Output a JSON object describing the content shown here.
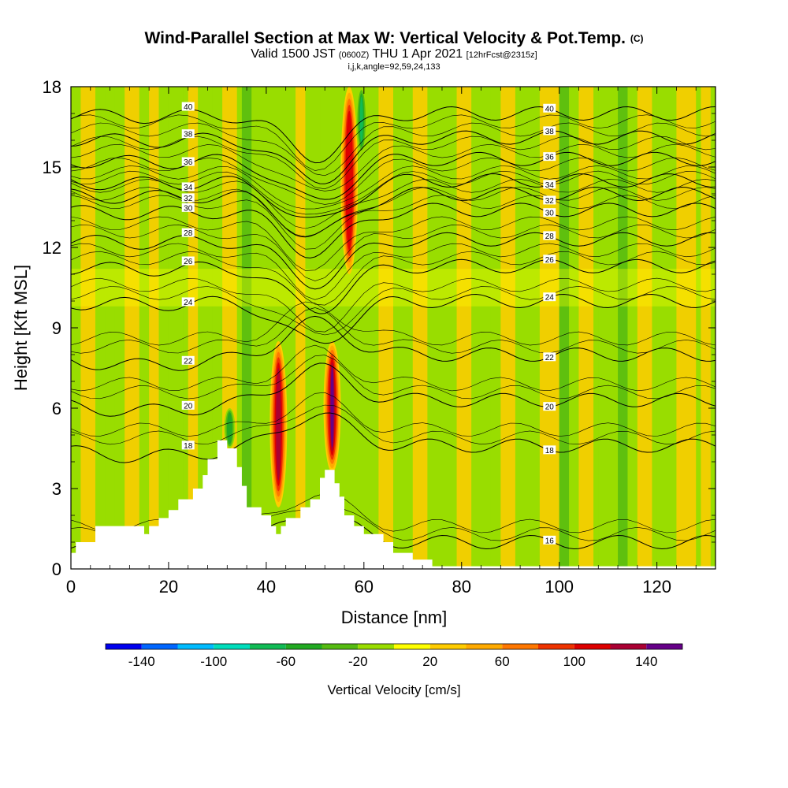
{
  "title": {
    "main": "Wind-Parallel Section at Max W: Vertical Velocity & Pot.Temp.",
    "corner": "(C)",
    "valid_prefix": "Valid 1500 JST",
    "valid_z": "(0600Z)",
    "valid_date": "THU 1 Apr 2021",
    "forecast": "[12hrFcst@2315z]",
    "indices": "i,j,k,angle=92,59,24,133"
  },
  "chart_data": {
    "type": "heatmap",
    "xlabel": "Distance [nm]",
    "ylabel": "Height [Kft MSL]",
    "xlim": [
      0,
      132
    ],
    "ylim": [
      0,
      18
    ],
    "x_ticks": [
      0,
      20,
      40,
      60,
      80,
      100,
      120
    ],
    "y_ticks": [
      0,
      3,
      6,
      9,
      12,
      15,
      18
    ],
    "colorbar": {
      "label": "Vertical Velocity [cm/s]",
      "levels": [
        -160,
        -140,
        -120,
        -100,
        -80,
        -60,
        -40,
        -20,
        0,
        20,
        40,
        60,
        80,
        100,
        120,
        140,
        160
      ],
      "tick_labels": [
        "-140",
        "-100",
        "-60",
        "-20",
        "20",
        "60",
        "100",
        "140"
      ],
      "colors": [
        "#0000ee",
        "#0066ff",
        "#00bbff",
        "#00ddbb",
        "#11bb55",
        "#22aa22",
        "#55bb11",
        "#99dd00",
        "#ffff00",
        "#ffcc00",
        "#ffaa00",
        "#ff7700",
        "#ee3300",
        "#dd0000",
        "#aa0033",
        "#660088"
      ]
    },
    "background_color": "#99dd00",
    "updraft_columns": [
      {
        "x": 42.5,
        "y_bottom": 2.3,
        "y_top": 8.5,
        "peak_w": 120
      },
      {
        "x": 53.5,
        "y_bottom": 3.6,
        "y_top": 8.5,
        "peak_w": 140
      },
      {
        "x": 57.0,
        "y_bottom": 11.0,
        "y_top": 18,
        "peak_w": 100
      }
    ],
    "downdraft_columns": [
      {
        "x": 59.5,
        "y_bottom": 15.5,
        "y_top": 18,
        "min_w": -80
      },
      {
        "x": 32.5,
        "y_bottom": 4.5,
        "y_top": 6.0,
        "min_w": -60
      }
    ],
    "theta_contour_labels": [
      "16",
      "18",
      "20",
      "22",
      "24",
      "26",
      "28",
      "30",
      "32",
      "34",
      "36",
      "38",
      "40"
    ],
    "theta_levels": [
      {
        "label": "16",
        "h_far": 1.0
      },
      {
        "label": "18",
        "h_far": 4.6
      },
      {
        "label": "20",
        "h_far": 6.3
      },
      {
        "label": "22",
        "h_far": 8.0
      },
      {
        "label": "24",
        "h_far": 10.0
      },
      {
        "label": "26",
        "h_far": 11.3
      },
      {
        "label": "28",
        "h_far": 12.3
      },
      {
        "label": "30",
        "h_far": 13.4
      },
      {
        "label": "32",
        "h_far": 14.0
      },
      {
        "label": "34",
        "h_far": 14.5
      },
      {
        "label": "36",
        "h_far": 15.3
      },
      {
        "label": "38",
        "h_far": 16.1
      },
      {
        "label": "40",
        "h_far": 17.0
      }
    ],
    "terrain": [
      [
        0,
        0.6
      ],
      [
        1,
        0.6
      ],
      [
        1,
        1.0
      ],
      [
        5,
        1.0
      ],
      [
        5,
        1.6
      ],
      [
        15,
        1.6
      ],
      [
        15,
        1.3
      ],
      [
        16,
        1.3
      ],
      [
        16,
        1.6
      ],
      [
        18,
        1.6
      ],
      [
        18,
        1.9
      ],
      [
        20,
        1.9
      ],
      [
        20,
        2.2
      ],
      [
        22,
        2.2
      ],
      [
        22,
        2.6
      ],
      [
        25,
        2.6
      ],
      [
        25,
        3.0
      ],
      [
        27,
        3.0
      ],
      [
        27,
        3.5
      ],
      [
        28,
        3.5
      ],
      [
        28,
        4.1
      ],
      [
        30,
        4.1
      ],
      [
        30,
        4.8
      ],
      [
        32,
        4.8
      ],
      [
        32,
        4.5
      ],
      [
        34,
        4.5
      ],
      [
        34,
        3.8
      ],
      [
        35,
        3.8
      ],
      [
        35,
        3.1
      ],
      [
        36,
        3.1
      ],
      [
        36,
        2.3
      ],
      [
        39,
        2.3
      ],
      [
        39,
        2.0
      ],
      [
        41,
        2.0
      ],
      [
        41,
        1.6
      ],
      [
        42,
        1.6
      ],
      [
        42,
        1.3
      ],
      [
        43,
        1.3
      ],
      [
        43,
        1.6
      ],
      [
        44,
        1.6
      ],
      [
        44,
        1.9
      ],
      [
        47,
        1.9
      ],
      [
        47,
        2.3
      ],
      [
        49,
        2.3
      ],
      [
        49,
        2.6
      ],
      [
        51,
        2.6
      ],
      [
        51,
        3.4
      ],
      [
        52,
        3.4
      ],
      [
        52,
        3.7
      ],
      [
        54,
        3.7
      ],
      [
        54,
        3.2
      ],
      [
        55,
        3.2
      ],
      [
        55,
        2.7
      ],
      [
        56,
        2.7
      ],
      [
        56,
        2.0
      ],
      [
        58,
        2.0
      ],
      [
        58,
        1.6
      ],
      [
        60,
        1.6
      ],
      [
        60,
        1.3
      ],
      [
        64,
        1.3
      ],
      [
        64,
        1.0
      ],
      [
        66,
        1.0
      ],
      [
        66,
        0.6
      ],
      [
        70,
        0.6
      ],
      [
        70,
        0.35
      ],
      [
        74,
        0.35
      ],
      [
        74,
        0
      ],
      [
        76,
        0
      ]
    ]
  }
}
